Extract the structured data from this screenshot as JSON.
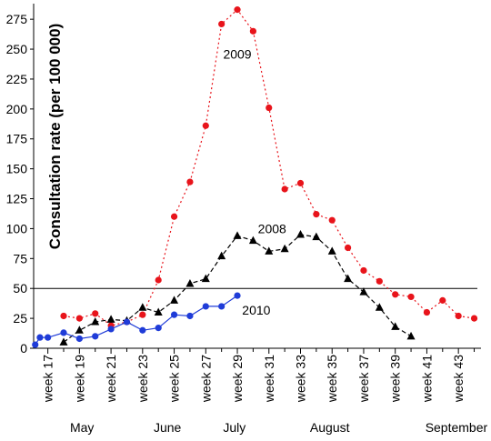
{
  "chart_data": {
    "type": "line",
    "ylabel": "Consultation rate (per 100 000)",
    "ylim": [
      0,
      285
    ],
    "yticks": [
      0,
      25,
      50,
      75,
      100,
      125,
      150,
      175,
      200,
      225,
      250,
      275
    ],
    "xlim": [
      16.1,
      44.2
    ],
    "xtick_labels": [
      "week 17",
      "week 19",
      "week 21",
      "week 23",
      "week 25",
      "week 27",
      "week 29",
      "week 31",
      "week 33",
      "week 35",
      "week 37",
      "week 39",
      "week 41",
      "week 43"
    ],
    "month_labels": [
      "May",
      "June",
      "July",
      "August",
      "September"
    ],
    "threshold": 50,
    "grid": false,
    "series": [
      {
        "name": "2009",
        "color": "#e8141b",
        "marker": "circle",
        "line": "dotted",
        "points": [
          [
            18,
            27
          ],
          [
            19,
            25
          ],
          [
            20,
            29
          ],
          [
            21,
            19
          ],
          [
            22,
            22
          ],
          [
            23,
            28
          ],
          [
            24,
            57
          ],
          [
            25,
            110
          ],
          [
            26,
            139
          ],
          [
            27,
            186
          ],
          [
            28,
            271
          ],
          [
            29,
            283
          ],
          [
            30,
            265
          ],
          [
            31,
            201
          ],
          [
            32,
            133
          ],
          [
            33,
            138
          ],
          [
            34,
            112
          ],
          [
            35,
            107
          ],
          [
            36,
            84
          ],
          [
            37,
            65
          ],
          [
            38,
            56
          ],
          [
            39,
            45
          ],
          [
            40,
            43
          ],
          [
            41,
            30
          ],
          [
            42,
            40
          ],
          [
            43,
            27
          ],
          [
            44,
            25
          ]
        ]
      },
      {
        "name": "2008",
        "color": "#000000",
        "marker": "triangle",
        "line": "dashed",
        "points": [
          [
            18,
            5
          ],
          [
            19,
            15
          ],
          [
            20,
            22
          ],
          [
            21,
            24
          ],
          [
            22,
            23
          ],
          [
            23,
            34
          ],
          [
            24,
            30
          ],
          [
            25,
            40
          ],
          [
            26,
            54
          ],
          [
            27,
            58
          ],
          [
            28,
            77
          ],
          [
            29,
            94
          ],
          [
            30,
            90
          ],
          [
            31,
            81
          ],
          [
            32,
            83
          ],
          [
            33,
            95
          ],
          [
            34,
            93
          ],
          [
            35,
            81
          ],
          [
            36,
            58
          ],
          [
            37,
            47
          ],
          [
            38,
            34
          ],
          [
            39,
            18
          ],
          [
            40,
            10
          ]
        ]
      },
      {
        "name": "2010",
        "color": "#1f3cd8",
        "marker": "circle",
        "line": "solid",
        "points": [
          [
            16.2,
            3
          ],
          [
            16.5,
            9
          ],
          [
            17,
            9
          ],
          [
            18,
            13
          ],
          [
            19,
            8
          ],
          [
            20,
            10
          ],
          [
            21,
            16
          ],
          [
            22,
            22
          ],
          [
            23,
            15
          ],
          [
            24,
            17
          ],
          [
            25,
            28
          ],
          [
            26,
            27
          ],
          [
            27,
            35
          ],
          [
            28,
            35
          ],
          [
            29,
            44
          ]
        ]
      }
    ],
    "annotations": [
      {
        "text": "2009",
        "x": 29,
        "y": 242
      },
      {
        "text": "2008",
        "x": 31.2,
        "y": 96
      },
      {
        "text": "2010",
        "x": 30.2,
        "y": 28
      }
    ]
  }
}
